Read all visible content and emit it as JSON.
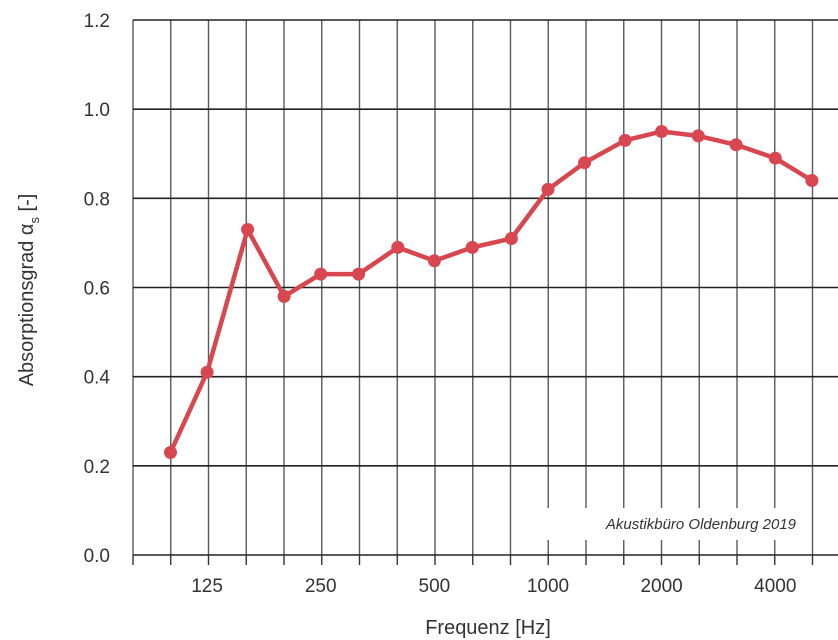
{
  "chart_data": {
    "type": "line",
    "xlabel": "Frequenz [Hz]",
    "ylabel": "Absorptionsgrad α",
    "ylabel_sub": "s",
    "ylabel_suffix": " [-]",
    "annotation": "Akustikbüro Oldenburg 2019",
    "ylim": [
      0.0,
      1.2
    ],
    "yticks": [
      "0.0",
      "0.2",
      "0.4",
      "0.6",
      "0.8",
      "1.0",
      "1.2"
    ],
    "x_tick_labels": [
      {
        "label": "125",
        "hz": 125
      },
      {
        "label": "250",
        "hz": 250
      },
      {
        "label": "500",
        "hz": 500
      },
      {
        "label": "1000",
        "hz": 1000
      },
      {
        "label": "2000",
        "hz": 2000
      },
      {
        "label": "4000",
        "hz": 4000
      }
    ],
    "x_scale": "log (third-octave bands)",
    "grid": true,
    "color": "#d8464f",
    "series": [
      {
        "x": [
          100,
          125,
          160,
          200,
          250,
          315,
          400,
          500,
          630,
          800,
          1000,
          1250,
          1600,
          2000,
          2500,
          3150,
          4000,
          5000
        ],
        "values": [
          0.23,
          0.41,
          0.73,
          0.58,
          0.63,
          0.63,
          0.69,
          0.66,
          0.69,
          0.71,
          0.82,
          0.88,
          0.93,
          0.95,
          0.94,
          0.92,
          0.89,
          0.84
        ]
      }
    ]
  }
}
